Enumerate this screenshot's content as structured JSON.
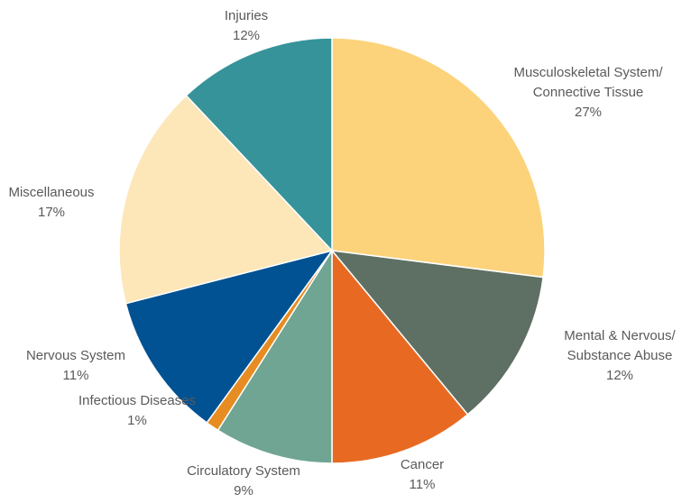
{
  "chart_data": {
    "type": "pie",
    "start_angle_deg": 0,
    "direction": "clockwise",
    "slices": [
      {
        "label_lines": [
          "Musculoskeletal System/",
          "Connective Tissue"
        ],
        "value": 27,
        "value_label": "27%",
        "color": "#fcd37b"
      },
      {
        "label_lines": [
          "Mental & Nervous/",
          "Substance Abuse"
        ],
        "value": 12,
        "value_label": "12%",
        "color": "#5e6f63"
      },
      {
        "label_lines": [
          "Cancer"
        ],
        "value": 11,
        "value_label": "11%",
        "color": "#e86a22"
      },
      {
        "label_lines": [
          "Circulatory System"
        ],
        "value": 9,
        "value_label": "9%",
        "color": "#6fa592"
      },
      {
        "label_lines": [
          "Infectious Diseases"
        ],
        "value": 1,
        "value_label": "1%",
        "color": "#e68c22"
      },
      {
        "label_lines": [
          "Nervous System"
        ],
        "value": 11,
        "value_label": "11%",
        "color": "#005293"
      },
      {
        "label_lines": [
          "Miscellaneous"
        ],
        "value": 17,
        "value_label": "17%",
        "color": "#fde6b8"
      },
      {
        "label_lines": [
          "Injuries"
        ],
        "value": 12,
        "value_label": "12%",
        "color": "#36939a"
      }
    ]
  }
}
